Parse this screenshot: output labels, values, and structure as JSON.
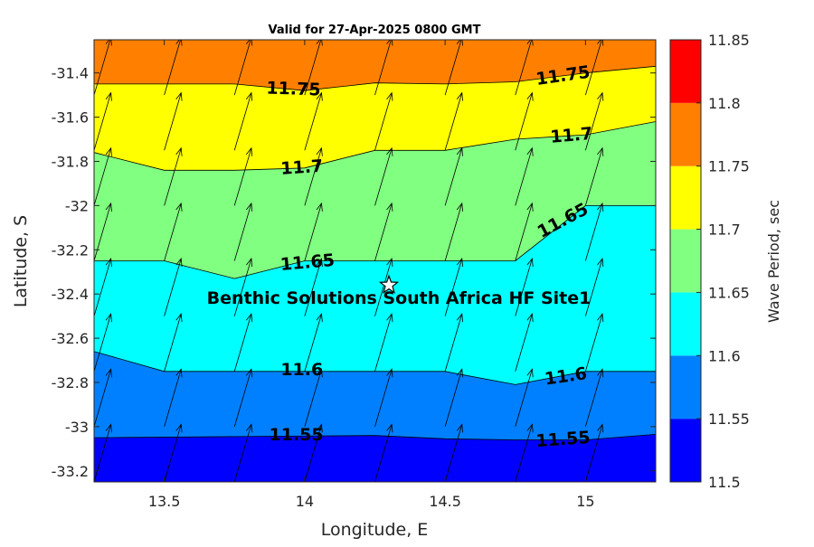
{
  "chart_data": {
    "type": "contour",
    "title": "Valid for 27-Apr-2025 0800 GMT",
    "xlabel": "Longitude, E",
    "ylabel": "Latitude, S",
    "xlim": [
      13.25,
      15.25
    ],
    "ylim": [
      -33.25,
      -31.25
    ],
    "x_ticks": [
      13.5,
      14,
      14.5,
      15
    ],
    "x_tick_labels": [
      "13.5",
      "14",
      "14.5",
      "15"
    ],
    "y_ticks": [
      -31.4,
      -31.6,
      -31.8,
      -32,
      -32.2,
      -32.4,
      -32.6,
      -32.8,
      -33,
      -33.2
    ],
    "y_tick_labels": [
      "-31.4",
      "-31.6",
      "-31.8",
      "-32",
      "-32.2",
      "-32.4",
      "-32.6",
      "-32.8",
      "-33",
      "-33.2"
    ],
    "colorbar": {
      "label": "Wave Period, sec",
      "levels": [
        11.5,
        11.55,
        11.6,
        11.65,
        11.7,
        11.75,
        11.8,
        11.85
      ],
      "tick_labels": [
        "11.5",
        "11.55",
        "11.6",
        "11.65",
        "11.7",
        "11.75",
        "11.8",
        "11.85"
      ],
      "colors": [
        "#0000ff",
        "#0080ff",
        "#00ffff",
        "#80ff80",
        "#ffff00",
        "#ff8000",
        "#ff0000"
      ]
    },
    "contours": [
      {
        "level": 11.55,
        "label": "11.55",
        "points": [
          [
            13.25,
            -33.05
          ],
          [
            13.75,
            -33.045
          ],
          [
            14.25,
            -33.04
          ],
          [
            14.5,
            -33.055
          ],
          [
            14.75,
            -33.06
          ],
          [
            15.0,
            -33.06
          ],
          [
            15.25,
            -33.035
          ]
        ]
      },
      {
        "level": 11.6,
        "label": "11.6",
        "points": [
          [
            13.25,
            -32.66
          ],
          [
            13.5,
            -32.75
          ],
          [
            14.0,
            -32.75
          ],
          [
            14.5,
            -32.75
          ],
          [
            14.75,
            -32.81
          ],
          [
            15.0,
            -32.75
          ],
          [
            15.25,
            -32.75
          ]
        ]
      },
      {
        "level": 11.65,
        "label": "11.65",
        "points": [
          [
            13.25,
            -32.25
          ],
          [
            13.5,
            -32.25
          ],
          [
            13.75,
            -32.33
          ],
          [
            14.0,
            -32.25
          ],
          [
            14.5,
            -32.25
          ],
          [
            14.75,
            -32.25
          ],
          [
            15.0,
            -32.0
          ],
          [
            15.25,
            -32.0
          ]
        ]
      },
      {
        "level": 11.7,
        "label": "11.7",
        "points": [
          [
            13.25,
            -31.76
          ],
          [
            13.5,
            -31.84
          ],
          [
            13.75,
            -31.84
          ],
          [
            14.0,
            -31.83
          ],
          [
            14.25,
            -31.75
          ],
          [
            14.5,
            -31.75
          ],
          [
            14.75,
            -31.7
          ],
          [
            15.0,
            -31.68
          ],
          [
            15.25,
            -31.62
          ]
        ]
      },
      {
        "level": 11.75,
        "label": "11.75",
        "points": [
          [
            13.25,
            -31.45
          ],
          [
            13.75,
            -31.45
          ],
          [
            14.0,
            -31.48
          ],
          [
            14.25,
            -31.445
          ],
          [
            14.5,
            -31.45
          ],
          [
            14.75,
            -31.44
          ],
          [
            15.0,
            -31.4
          ],
          [
            15.25,
            -31.37
          ]
        ]
      }
    ],
    "contour_labels": [
      {
        "text": "11.75",
        "lon": 13.96,
        "lat": -31.475,
        "angle": 2
      },
      {
        "text": "11.75",
        "lon": 14.92,
        "lat": -31.415,
        "angle": -8
      },
      {
        "text": "11.7",
        "lon": 13.99,
        "lat": -31.83,
        "angle": -4
      },
      {
        "text": "11.7",
        "lon": 14.95,
        "lat": -31.685,
        "angle": -5
      },
      {
        "text": "11.65",
        "lon": 14.01,
        "lat": -32.26,
        "angle": -5
      },
      {
        "text": "11.65",
        "lon": 14.92,
        "lat": -32.07,
        "angle": -28
      },
      {
        "text": "11.6",
        "lon": 13.99,
        "lat": -32.745,
        "angle": 0
      },
      {
        "text": "11.6",
        "lon": 14.93,
        "lat": -32.775,
        "angle": -8
      },
      {
        "text": "11.55",
        "lon": 13.97,
        "lat": -33.04,
        "angle": 0
      },
      {
        "text": "11.55",
        "lon": 14.92,
        "lat": -33.06,
        "angle": -4
      }
    ],
    "vectors": {
      "lons": [
        13.25,
        13.5,
        13.75,
        14.0,
        14.25,
        14.5,
        14.75,
        15.0
      ],
      "lats": [
        -31.5,
        -31.75,
        -32.0,
        -32.25,
        -32.5,
        -32.75,
        -33.0,
        -33.25
      ],
      "dlon": 0.06,
      "dlat": 0.26
    },
    "site": {
      "name": "Benthic Solutions South Africa HF Site1",
      "lon": 14.3,
      "lat": -32.36
    }
  }
}
